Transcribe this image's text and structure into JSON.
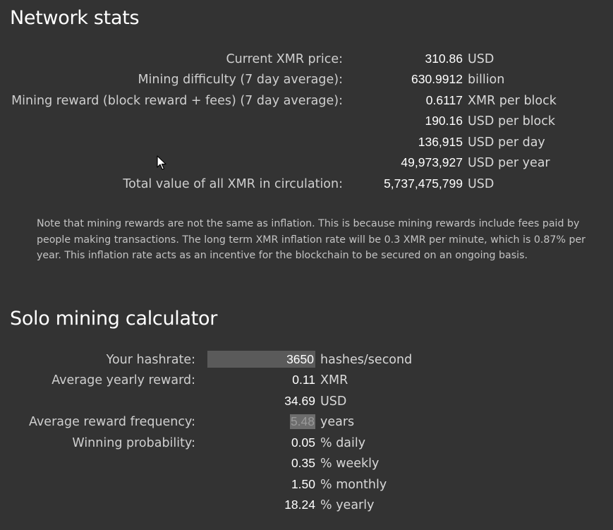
{
  "network": {
    "title": "Network stats",
    "rows": [
      {
        "label": "Current XMR price:",
        "value": "310.86",
        "unit": "USD"
      },
      {
        "label": "Mining difficulty (7 day average):",
        "value": "630.9912",
        "unit": "billion"
      },
      {
        "label": "Mining reward (block reward + fees) (7 day average):",
        "value": "0.6117",
        "unit": "XMR per block"
      },
      {
        "label": "",
        "value": "190.16",
        "unit": "USD per block"
      },
      {
        "label": "",
        "value": "136,915",
        "unit": "USD per day"
      },
      {
        "label": "",
        "value": "49,973,927",
        "unit": "USD per year"
      },
      {
        "label": "Total value of all XMR in circulation:",
        "value": "5,737,475,799",
        "unit": "USD"
      }
    ],
    "note": "Note that mining rewards are not the same as inflation. This is because mining rewards include fees paid by people making transactions. The long term XMR inflation rate will be 0.3 XMR per minute, which is 0.87% per year. This inflation rate acts as an incentive for the blockchain to be secured on an ongoing basis."
  },
  "solo": {
    "title": "Solo mining calculator",
    "hashrate": {
      "label": "Your hashrate:",
      "value": "3650",
      "unit": "hashes/second"
    },
    "rows": [
      {
        "label": "Average yearly reward:",
        "value": "0.11",
        "unit": "XMR"
      },
      {
        "label": "",
        "value": "34.69",
        "unit": "USD"
      },
      {
        "label": "Average reward frequency:",
        "value": "5.48",
        "unit": "years"
      },
      {
        "label": "Winning probability:",
        "value": "0.05",
        "unit": "% daily"
      },
      {
        "label": "",
        "value": "0.35",
        "unit": "% weekly"
      },
      {
        "label": "",
        "value": "1.50",
        "unit": "% monthly"
      },
      {
        "label": "",
        "value": "18.24",
        "unit": "% yearly"
      }
    ]
  },
  "colors": {
    "background": "#333333",
    "heading": "#ffffff",
    "value": "#ffffff",
    "label": "#cfcfcf",
    "input_bg": "#5a5a5a"
  },
  "icons": {
    "cursor": "mouse-pointer-icon"
  }
}
